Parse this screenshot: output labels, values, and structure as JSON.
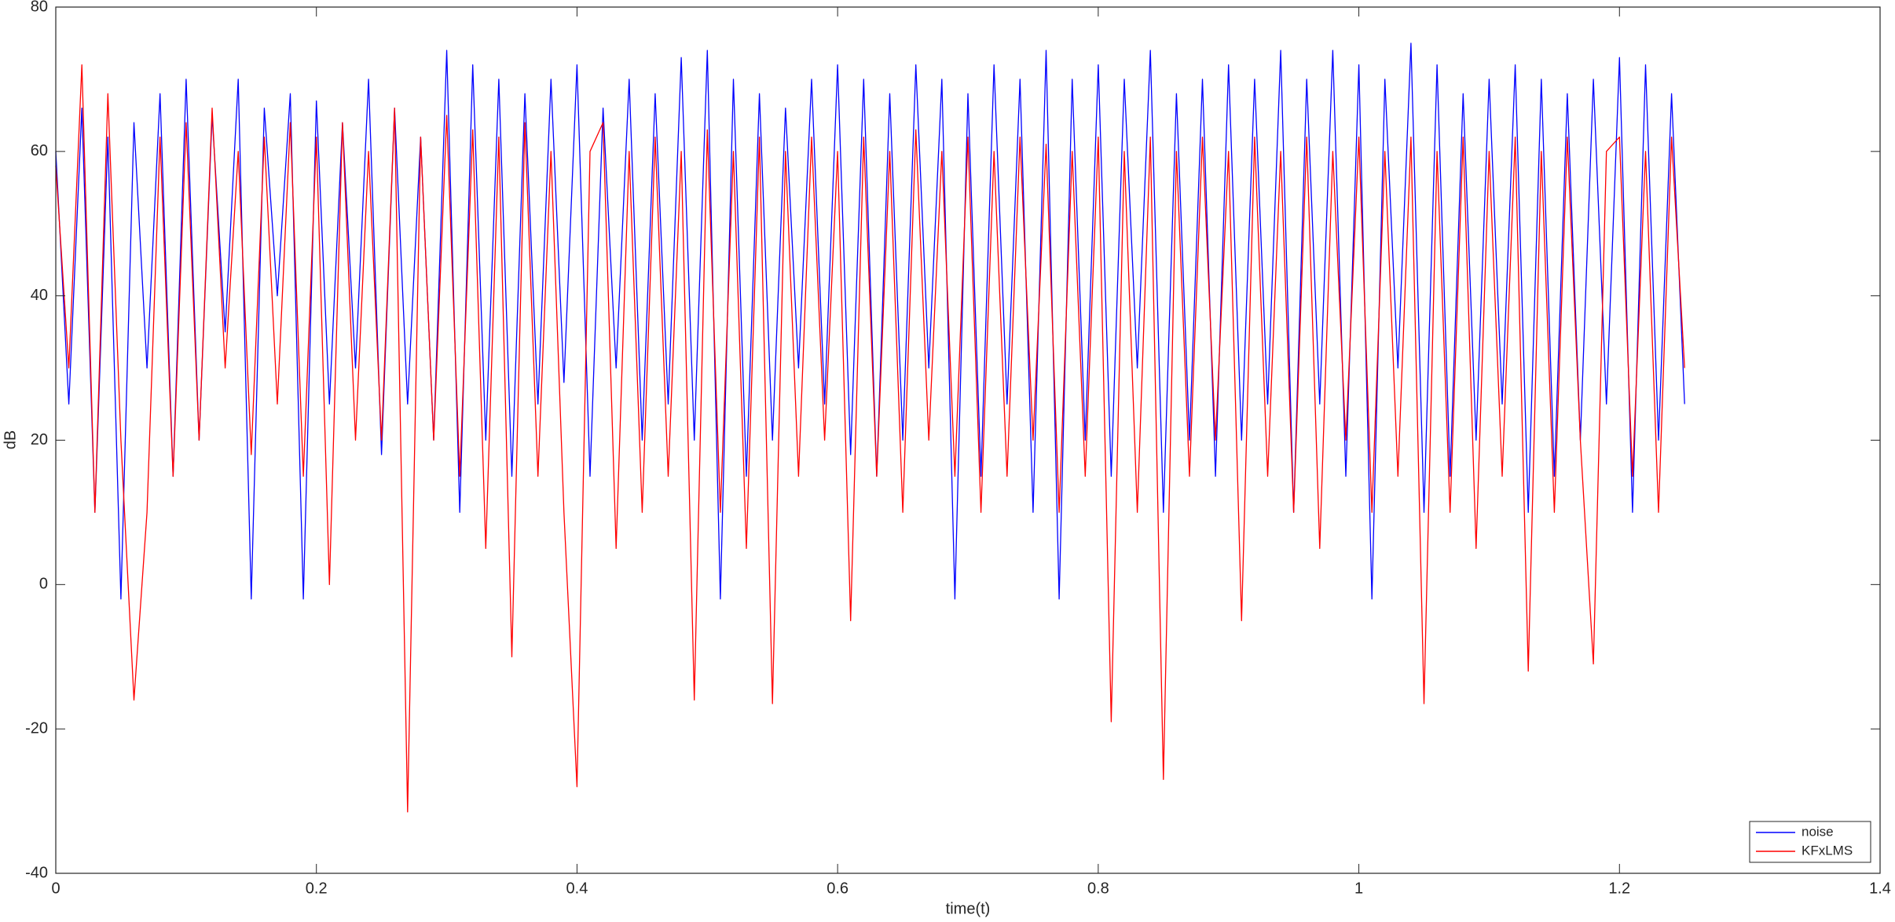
{
  "chart_data": {
    "type": "line",
    "xlabel": "time(t)",
    "ylabel": "dB",
    "x": [
      0,
      0.01,
      0.02,
      0.03,
      0.04,
      0.05,
      0.06,
      0.07,
      0.08,
      0.09,
      0.1,
      0.11,
      0.12,
      0.13,
      0.14,
      0.15,
      0.16,
      0.17,
      0.18,
      0.19,
      0.2,
      0.21,
      0.22,
      0.23,
      0.24,
      0.25,
      0.26,
      0.27,
      0.28,
      0.29,
      0.3,
      0.31,
      0.32,
      0.33,
      0.34,
      0.35,
      0.36,
      0.37,
      0.38,
      0.39,
      0.4,
      0.41,
      0.42,
      0.43,
      0.44,
      0.45,
      0.46,
      0.47,
      0.48,
      0.49,
      0.5,
      0.51,
      0.52,
      0.53,
      0.54,
      0.55,
      0.56,
      0.57,
      0.58,
      0.59,
      0.6,
      0.61,
      0.62,
      0.63,
      0.64,
      0.65,
      0.66,
      0.67,
      0.68,
      0.69,
      0.7,
      0.71,
      0.72,
      0.73,
      0.74,
      0.75,
      0.76,
      0.77,
      0.78,
      0.79,
      0.8,
      0.81,
      0.82,
      0.83,
      0.84,
      0.85,
      0.86,
      0.87,
      0.88,
      0.89,
      0.9,
      0.91,
      0.92,
      0.93,
      0.94,
      0.95,
      0.96,
      0.97,
      0.98,
      0.99,
      1,
      1.01,
      1.02,
      1.03,
      1.04,
      1.05,
      1.06,
      1.07,
      1.08,
      1.09,
      1.1,
      1.11,
      1.12,
      1.13,
      1.14,
      1.15,
      1.16,
      1.17,
      1.18,
      1.19,
      1.2,
      1.21,
      1.22,
      1.23,
      1.24,
      1.25
    ],
    "series": [
      {
        "name": "noise",
        "color": "#0000ff",
        "values": [
          60,
          25,
          66,
          10,
          62,
          -2,
          64,
          30,
          68,
          15,
          70,
          20,
          65,
          35,
          70,
          -2,
          66,
          40,
          68,
          -2,
          67,
          25,
          64,
          30,
          70,
          18,
          66,
          25,
          62,
          20,
          74,
          10,
          72,
          20,
          70,
          15,
          68,
          25,
          70,
          28,
          72,
          15,
          66,
          30,
          70,
          20,
          68,
          25,
          73,
          20,
          74,
          -2,
          70,
          15,
          68,
          20,
          66,
          30,
          70,
          25,
          72,
          18,
          70,
          15,
          68,
          20,
          72,
          30,
          70,
          -2,
          68,
          15,
          72,
          25,
          70,
          10,
          74,
          -2,
          70,
          20,
          72,
          15,
          70,
          30,
          74,
          10,
          68,
          20,
          70,
          15,
          72,
          20,
          70,
          25,
          74,
          10,
          70,
          25,
          74,
          15,
          72,
          -2,
          70,
          30,
          75,
          10,
          72,
          15,
          68,
          20,
          70,
          25,
          72,
          10,
          70,
          15,
          68,
          20,
          70,
          25,
          73,
          10,
          72,
          20,
          68,
          25
        ]
      },
      {
        "name": "KFxLMS",
        "color": "#ff0000",
        "values": [
          58,
          30,
          72,
          10,
          68,
          20,
          -16,
          10,
          62,
          15,
          64,
          20,
          66,
          30,
          60,
          18,
          62,
          25,
          64,
          15,
          62,
          0,
          64,
          20,
          60,
          20,
          66,
          -31.5,
          62,
          20,
          65,
          15,
          63,
          5,
          62,
          -10,
          64,
          15,
          60,
          10,
          -28,
          60,
          64,
          5,
          60,
          10,
          62,
          15,
          60,
          -16,
          63,
          10,
          60,
          5,
          62,
          -16.5,
          60,
          15,
          62,
          20,
          60,
          -5,
          62,
          15,
          60,
          10,
          63,
          20,
          60,
          15,
          62,
          10,
          60,
          15,
          62,
          20,
          61,
          10,
          60,
          15,
          62,
          -19,
          60,
          10,
          62,
          -27,
          60,
          15,
          62,
          20,
          60,
          -5,
          62,
          15,
          60,
          10,
          62,
          5,
          60,
          20,
          62,
          10,
          60,
          15,
          62,
          -16.5,
          60,
          10,
          62,
          5,
          60,
          15,
          62,
          -12,
          60,
          10,
          62,
          20,
          -11,
          60,
          62,
          15,
          60,
          10,
          62,
          30
        ]
      }
    ],
    "xlim": [
      0,
      1.4
    ],
    "xticks": [
      0,
      0.2,
      0.4,
      0.6,
      0.8,
      1,
      1.2,
      1.4
    ],
    "ylim": [
      -40,
      80
    ],
    "yticks": [
      -40,
      -20,
      0,
      20,
      40,
      60,
      80
    ],
    "grid": false,
    "legend": "lower right"
  }
}
